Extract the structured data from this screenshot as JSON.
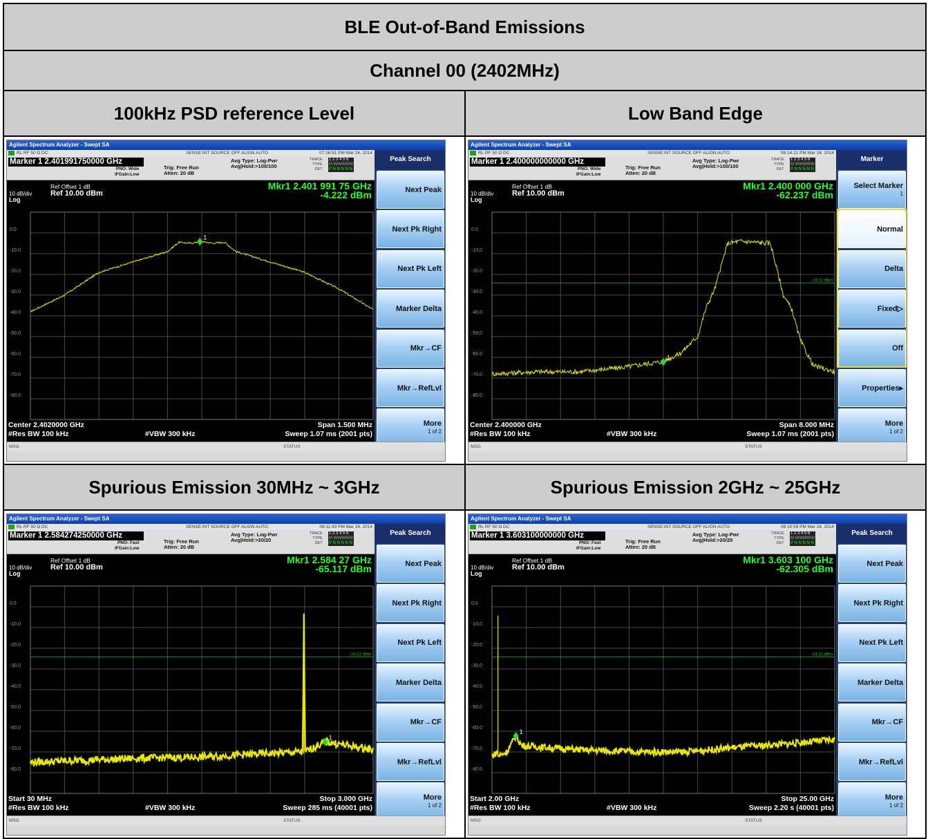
{
  "report": {
    "title": "BLE Out-of-Band Emissions",
    "channel": "Channel 00 (2402MHz)",
    "panel_titles": [
      "100kHz PSD reference Level",
      "Low Band Edge",
      "Spurious Emission 30MHz ~ 3GHz",
      "Spurious Emission 2GHz ~ 25GHz"
    ]
  },
  "panels": [
    {
      "window_title": "Agilent Spectrum Analyzer - Swept SA",
      "status_left": "RL      RF      50 Ω   DC",
      "status_mid": "SENSE:INT  SOURCE OFF      ALIGN AUTO",
      "timestamp": "07:16:51 PM Mar 24, 2014",
      "marker_title": "Marker 1  2.401991750000 GHz",
      "pno": "PNO: Wide",
      "ifgain": "IFGain:Low",
      "trig": "Trig: Free Run",
      "atten": "Atten: 20 dB",
      "avg_type": "Avg Type: Log-Pwr",
      "avg_hold": "Avg|Hold:>100/100",
      "ref_offset": "Ref Offset 1 dB",
      "ref_level": "Ref 10.00 dBm",
      "scale": "10 dB/div",
      "scale_type": "Log",
      "mkr_freq": "Mkr1 2.401 991 75 GHz",
      "mkr_amp": "-4.222 dBm",
      "foot_l1": "Center 2.4020000 GHz",
      "foot_l2": "#Res BW 100 kHz",
      "foot_c2": "#VBW 300 kHz",
      "foot_r1": "Span 1.500 MHz",
      "foot_r2": "Sweep  1.07 ms (2001 pts)",
      "msg": "MSG",
      "status": "STATUS",
      "softkey_title": "Peak Search",
      "softkeys": [
        {
          "label": "Next Peak",
          "sub": ""
        },
        {
          "label": "Next Pk Right",
          "sub": ""
        },
        {
          "label": "Next Pk Left",
          "sub": ""
        },
        {
          "label": "Marker Delta",
          "sub": ""
        },
        {
          "label": "Mkr→CF",
          "sub": ""
        },
        {
          "label": "Mkr→RefLvl",
          "sub": ""
        },
        {
          "label": "More",
          "sub": "1 of 2"
        }
      ],
      "dl_label": "",
      "chart_data": {
        "type": "line",
        "xlabel": "",
        "ylabel": "",
        "ylim": [
          -90,
          10
        ],
        "x_range_ghz": [
          2.40125,
          2.40275
        ],
        "x": [
          2.40125,
          2.4014,
          2.40155,
          2.4017,
          2.40185,
          2.4019,
          2.40195,
          2.402,
          2.40205,
          2.4021,
          2.40215,
          2.4023,
          2.40245,
          2.4026,
          2.40275
        ],
        "values": [
          -38,
          -30,
          -19,
          -14,
          -9,
          -4.5,
          -5,
          -4.2,
          -5,
          -4.5,
          -9,
          -14,
          -19,
          -27,
          -37
        ],
        "marker": {
          "x": 2.40199175,
          "y": -4.222,
          "label": "1"
        }
      }
    },
    {
      "window_title": "Agilent Spectrum Analyzer - Swept SA",
      "status_left": "RL      RF      50 Ω   DC",
      "status_mid": "SENSE:INT  SOURCE OFF      ALIGN AUTO",
      "timestamp": "08:14:21 PM Mar 24, 2014",
      "marker_title": "Marker 1  2.400000000000 GHz",
      "pno": "PNO: Wide",
      "ifgain": "IFGain:Low",
      "trig": "Trig: Free Run",
      "atten": "Atten: 20 dB",
      "avg_type": "Avg Type: Log-Pwr",
      "avg_hold": "Avg|Hold:>100/100",
      "ref_offset": "Ref Offset 1 dB",
      "ref_level": "Ref 10.00 dBm",
      "scale": "10 dB/div",
      "scale_type": "Log",
      "mkr_freq": "Mkr1 2.400 000 GHz",
      "mkr_amp": "-62.237 dBm",
      "foot_l1": "Center 2.400000 GHz",
      "foot_l2": "#Res BW 100 kHz",
      "foot_c2": "#VBW 300 kHz",
      "foot_r1": "Span 8.000 MHz",
      "foot_r2": "Sweep  1.07 ms (2001 pts)",
      "msg": "MSG",
      "status": "STATUS",
      "softkey_title": "Marker",
      "softkeys": [
        {
          "label": "Select Marker",
          "sub": "1"
        },
        {
          "label": "Normal",
          "sub": ""
        },
        {
          "label": "Delta",
          "sub": ""
        },
        {
          "label": "Fixed▷",
          "sub": ""
        },
        {
          "label": "Off",
          "sub": ""
        },
        {
          "label": "Properties▸",
          "sub": ""
        },
        {
          "label": "More",
          "sub": "1 of 2"
        }
      ],
      "dl_label": "-24.22 dBm",
      "chart_data": {
        "type": "line",
        "xlabel": "",
        "ylabel": "",
        "ylim": [
          -90,
          10
        ],
        "x_range_ghz": [
          2.396,
          2.404
        ],
        "display_line": -24.22,
        "x": [
          2.396,
          2.397,
          2.398,
          2.399,
          2.4,
          2.4004,
          2.4008,
          2.401,
          2.4012,
          2.4015,
          2.4018,
          2.4025,
          2.4028,
          2.403,
          2.4032,
          2.4035,
          2.404
        ],
        "values": [
          -68,
          -67,
          -67,
          -65,
          -62,
          -58,
          -50,
          -36,
          -27,
          -5,
          -4,
          -5,
          -30,
          -37,
          -52,
          -64,
          -67
        ],
        "marker": {
          "x": 2.4,
          "y": -62.237,
          "label": "1"
        }
      }
    },
    {
      "window_title": "Agilent Spectrum Analyzer - Swept SA",
      "status_left": "RL      RF      50 Ω   DC",
      "status_mid": "SENSE:INT  SOURCE OFF      ALIGN AUTO",
      "timestamp": "08:11:43 PM Mar 24, 2014",
      "marker_title": "Marker 1  2.584274250000 GHz",
      "pno": "PNO: Fast",
      "ifgain": "IFGain:Low",
      "trig": "Trig: Free Run",
      "atten": "Atten: 20 dB",
      "avg_type": "Avg Type: Log-Pwr",
      "avg_hold": "Avg|Hold:>20/20",
      "ref_offset": "Ref Offset 1 dB",
      "ref_level": "Ref 10.00 dBm",
      "scale": "10 dB/div",
      "scale_type": "Log",
      "mkr_freq": "Mkr1 2.584 27 GHz",
      "mkr_amp": "-65.117 dBm",
      "foot_l1": "Start 30 MHz",
      "foot_l2": "#Res BW 100 kHz",
      "foot_c2": "#VBW 300 kHz",
      "foot_r1": "Stop 3.000 GHz",
      "foot_r2": "Sweep  285 ms (40001 pts)",
      "msg": "MSG",
      "status": "STATUS",
      "softkey_title": "Peak Search",
      "softkeys": [
        {
          "label": "Next Peak",
          "sub": ""
        },
        {
          "label": "Next Pk Right",
          "sub": ""
        },
        {
          "label": "Next Pk Left",
          "sub": ""
        },
        {
          "label": "Marker Delta",
          "sub": ""
        },
        {
          "label": "Mkr→CF",
          "sub": ""
        },
        {
          "label": "Mkr→RefLvl",
          "sub": ""
        },
        {
          "label": "More",
          "sub": "1 of 2"
        }
      ],
      "dl_label": "-24.22 dBm",
      "chart_data": {
        "type": "line",
        "xlabel": "",
        "ylabel": "",
        "ylim": [
          -90,
          10
        ],
        "x_range_ghz": [
          0.03,
          3.0
        ],
        "display_line": -24.22,
        "x": [
          0.03,
          0.5,
          1.0,
          1.5,
          2.0,
          2.39,
          2.4,
          2.41,
          2.584,
          3.0
        ],
        "values": [
          -75,
          -74,
          -73,
          -72.5,
          -71,
          -70,
          -4.2,
          -70,
          -65.117,
          -69
        ],
        "marker": {
          "x": 2.58427,
          "y": -65.117,
          "label": "1"
        }
      }
    },
    {
      "window_title": "Agilent Spectrum Analyzer - Swept SA",
      "status_left": "RL      RF      50 Ω   DC",
      "status_mid": "SENSE:INT  SOURCE OFF      ALIGN AUTO",
      "timestamp": "08:10:59 PM Mar 24, 2014",
      "marker_title": "Marker 1  3.603100000000 GHz",
      "pno": "PNO: Fast",
      "ifgain": "IFGain:Low",
      "trig": "Trig: Free Run",
      "atten": "Atten: 20 dB",
      "avg_type": "Avg Type: Log-Pwr",
      "avg_hold": "Avg|Hold:>20/20",
      "ref_offset": "Ref Offset 1 dB",
      "ref_level": "Ref 10.00 dBm",
      "scale": "10 dB/div",
      "scale_type": "Log",
      "mkr_freq": "Mkr1 3.603 100 GHz",
      "mkr_amp": "-62.305 dBm",
      "foot_l1": "Start 2.00 GHz",
      "foot_l2": "#Res BW 100 kHz",
      "foot_c2": "#VBW 300 kHz",
      "foot_r1": "Stop 25.00 GHz",
      "foot_r2": "Sweep  2.20 s (40001 pts)",
      "msg": "MSG",
      "status": "STATUS",
      "softkey_title": "Peak Search",
      "softkeys": [
        {
          "label": "Next Peak",
          "sub": ""
        },
        {
          "label": "Next Pk Right",
          "sub": ""
        },
        {
          "label": "Next Pk Left",
          "sub": ""
        },
        {
          "label": "Marker Delta",
          "sub": ""
        },
        {
          "label": "Mkr→CF",
          "sub": ""
        },
        {
          "label": "Mkr→RefLvl",
          "sub": ""
        },
        {
          "label": "More",
          "sub": "1 of 2"
        }
      ],
      "dl_label": "-24.22 dBm",
      "chart_data": {
        "type": "line",
        "xlabel": "",
        "ylabel": "",
        "ylim": [
          -90,
          10
        ],
        "x_range_ghz": [
          2.0,
          25.0
        ],
        "display_line": -24.22,
        "x": [
          2.0,
          2.39,
          2.4,
          2.41,
          3.0,
          3.603,
          4.0,
          8.0,
          12.0,
          15.0,
          18.0,
          22.0,
          25.0
        ],
        "values": [
          -72,
          -70,
          -4.2,
          -72,
          -70,
          -62.305,
          -67,
          -69,
          -70,
          -70,
          -68,
          -66,
          -64
        ],
        "marker": {
          "x": 3.6031,
          "y": -62.305,
          "label": "1"
        }
      }
    }
  ]
}
